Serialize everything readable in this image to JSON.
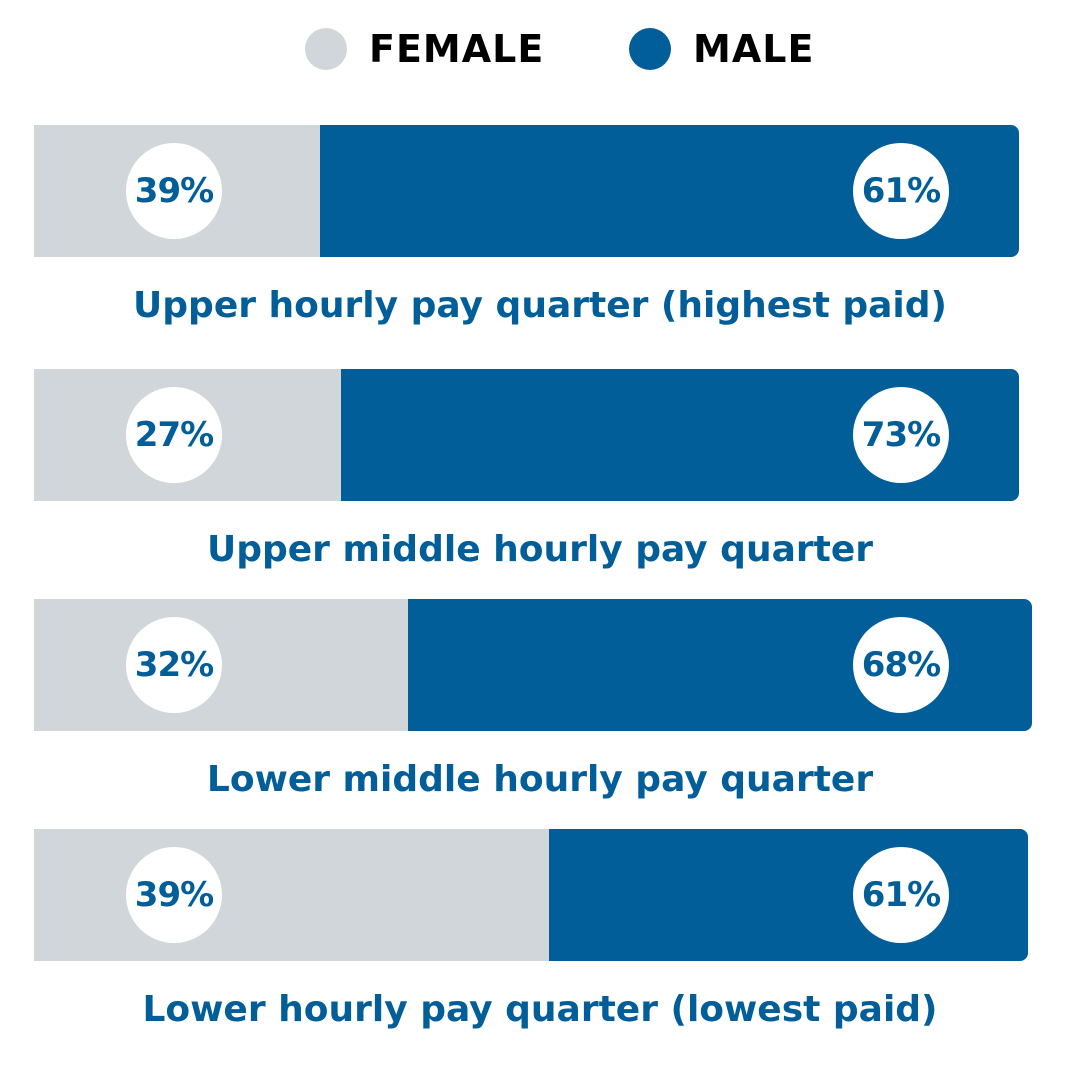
{
  "chart_data": {
    "type": "bar",
    "orientation": "horizontal",
    "stacked": true,
    "normalized": true,
    "categories": [
      "Upper hourly pay quarter (highest paid)",
      "Upper middle hourly pay quarter",
      "Lower middle hourly pay quarter",
      "Lower hourly pay quarter (lowest paid)"
    ],
    "series": [
      {
        "name": "FEMALE",
        "values": [
          39,
          27,
          32,
          39
        ],
        "labels": [
          "39%",
          "27%",
          "32%",
          "39%"
        ]
      },
      {
        "name": "MALE",
        "values": [
          61,
          73,
          68,
          61
        ],
        "labels": [
          "61%",
          "73%",
          "68%",
          "61%"
        ]
      }
    ],
    "legend_position": "top-center",
    "grid": false,
    "colors": {
      "female": "#d1d6db",
      "male": "#015e99",
      "label_text": "#015e99",
      "legend_text": "#000000",
      "bubble": "#ffffff"
    }
  }
}
